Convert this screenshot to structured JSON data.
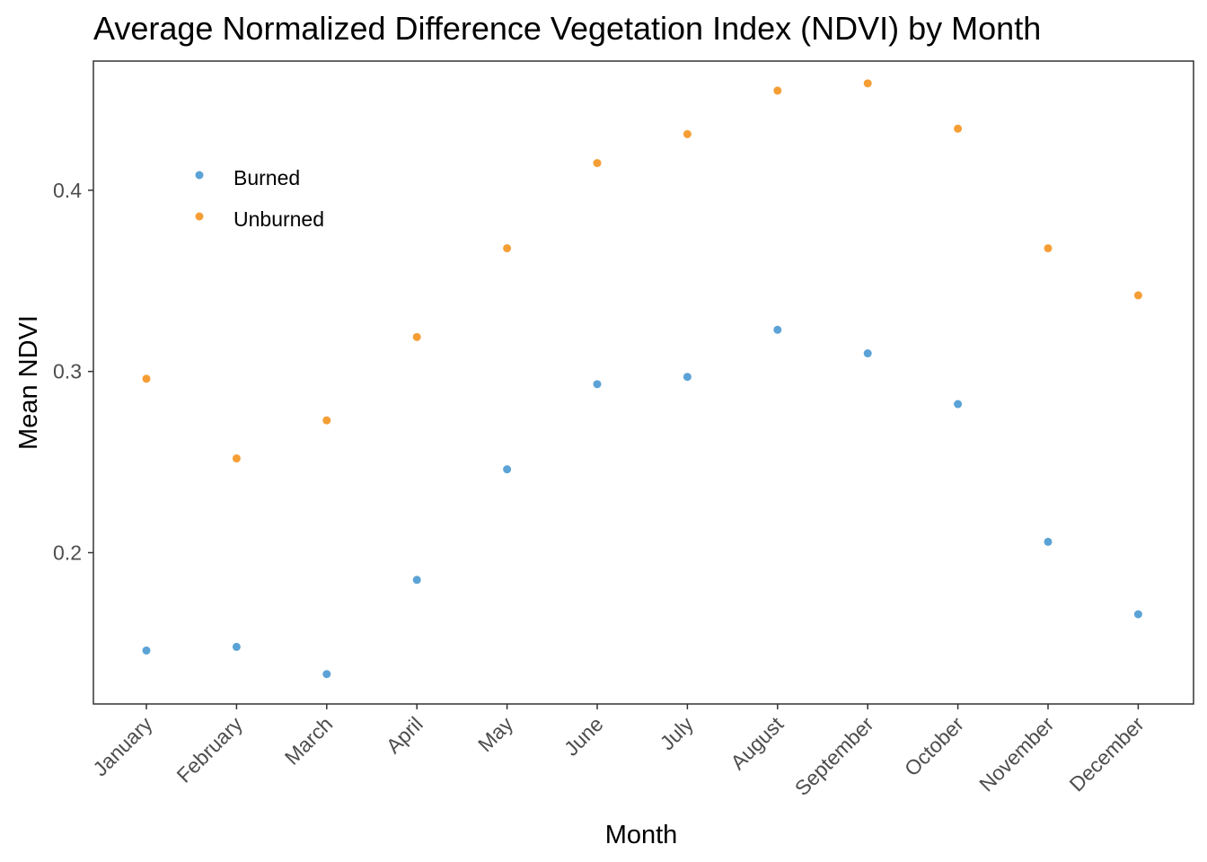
{
  "chart_data": {
    "type": "scatter",
    "title": "Average Normalized Difference Vegetation Index (NDVI) by Month",
    "xlabel": "Month",
    "ylabel": "Mean NDVI",
    "categories": [
      "January",
      "February",
      "March",
      "April",
      "May",
      "June",
      "July",
      "August",
      "September",
      "October",
      "November",
      "December"
    ],
    "y_ticks": [
      "0.2",
      "0.3",
      "0.4"
    ],
    "ylim": [
      0.1165,
      0.4713
    ],
    "series": [
      {
        "name": "Burned",
        "color": "#5BA3D6",
        "values": [
          0.146,
          0.148,
          0.133,
          0.185,
          0.246,
          0.293,
          0.297,
          0.323,
          0.31,
          0.282,
          0.206,
          0.166
        ]
      },
      {
        "name": "Unburned",
        "color": "#F59E35",
        "values": [
          0.296,
          0.252,
          0.273,
          0.319,
          0.368,
          0.415,
          0.431,
          0.455,
          0.459,
          0.434,
          0.368,
          0.342
        ]
      }
    ],
    "legend_position": "top-left inside",
    "grid": false
  }
}
